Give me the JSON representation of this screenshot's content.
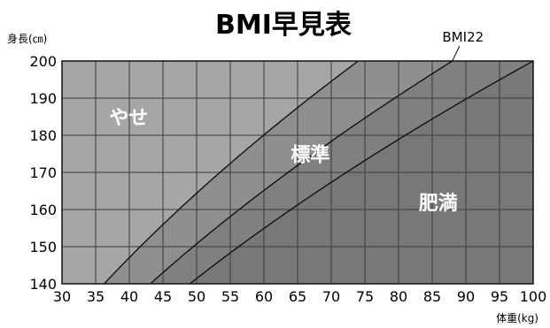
{
  "chart_data": {
    "type": "area",
    "title": "BMI早見表",
    "ylabel": "身長(㎝)",
    "xlabel": "体重(kg)",
    "xlim": [
      30,
      100
    ],
    "ylim": [
      140,
      200
    ],
    "x_ticks": [
      "30",
      "35",
      "40",
      "45",
      "50",
      "55",
      "60",
      "65",
      "70",
      "75",
      "80",
      "85",
      "90",
      "95",
      "100"
    ],
    "y_ticks": [
      "140",
      "150",
      "160",
      "170",
      "180",
      "190",
      "200"
    ],
    "grid": true,
    "curves": [
      {
        "name": "",
        "bmi": 18.5
      },
      {
        "name": "BMI22",
        "bmi": 22
      },
      {
        "name": "",
        "bmi": 25
      }
    ],
    "regions": [
      {
        "label": "やせ",
        "x": 37,
        "y": 183
      },
      {
        "label": "標準",
        "x": 64,
        "y": 173
      },
      {
        "label": "肥満",
        "x": 83,
        "y": 160
      }
    ],
    "colors": {
      "underweight": "#a6a6a6",
      "normal": "#8f8f8f",
      "band": "#808080",
      "obese": "#787878"
    }
  }
}
